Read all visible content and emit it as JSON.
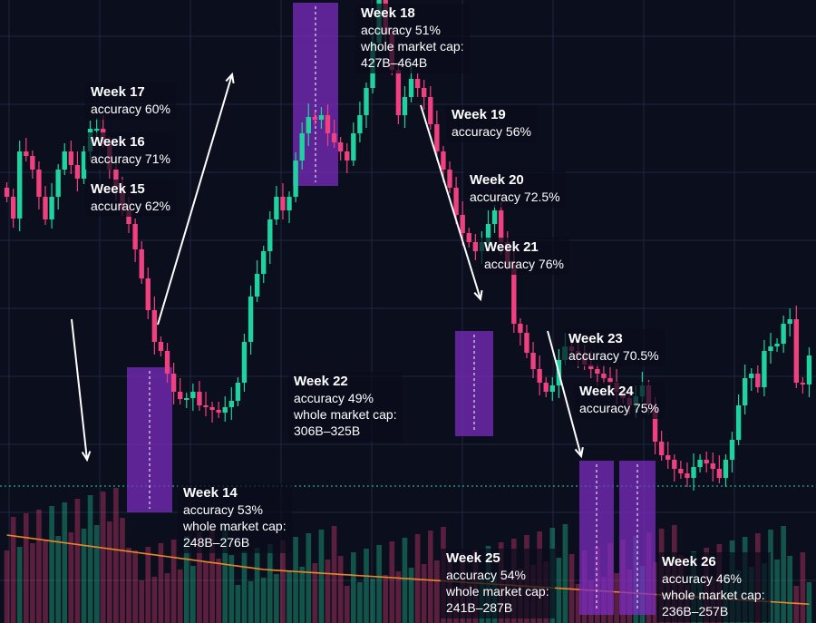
{
  "colors": {
    "background": "#0b0e1d",
    "grid": "#1f2740",
    "up": "#1fd3a0",
    "down": "#f0407f",
    "highlight": "#7b2cbf",
    "highlight_inner": "#4a5fe0",
    "volume_avg": "#e8862b",
    "price_line": "#2ad4a6",
    "arrow": "#ffffff"
  },
  "chart_data": {
    "type": "candlestick",
    "title": "",
    "xlabel": "",
    "ylabel": "",
    "grid": true,
    "price_closes": [
      470,
      446,
      520,
      515,
      500,
      470,
      445,
      470,
      500,
      520,
      505,
      490,
      520,
      545,
      545,
      530,
      500,
      480,
      455,
      440,
      412,
      380,
      345,
      310,
      300,
      275,
      255,
      247,
      248,
      255,
      240,
      238,
      235,
      232,
      238,
      245,
      265,
      310,
      360,
      385,
      410,
      445,
      470,
      455,
      470,
      510,
      540,
      558,
      555,
      560,
      540,
      530,
      520,
      510,
      540,
      560,
      590,
      640,
      700,
      650,
      610,
      560,
      580,
      600,
      590,
      580,
      550,
      520,
      500,
      480,
      450,
      430,
      420,
      410,
      420,
      440,
      455,
      420,
      395,
      330,
      320,
      298,
      280,
      265,
      255,
      262,
      290,
      305,
      300,
      295,
      285,
      280,
      275,
      270,
      265,
      255,
      248,
      240,
      250,
      262,
      240,
      200,
      185,
      180,
      170,
      165,
      160,
      172,
      180,
      176,
      170,
      160,
      180,
      202,
      240,
      270,
      275,
      260,
      300,
      305,
      308,
      330,
      335,
      265,
      263,
      295
    ],
    "week_notes": [
      {
        "week": "Week 14",
        "accuracy": "accuracy 53%",
        "cap": "whole market cap:",
        "range": "248B–276B"
      },
      {
        "week": "Week 15",
        "accuracy": "accuracy 62%"
      },
      {
        "week": "Week 16",
        "accuracy": "accuracy 71%"
      },
      {
        "week": "Week 17",
        "accuracy": "accuracy 60%"
      },
      {
        "week": "Week 18",
        "accuracy": "accuracy 51%",
        "cap": "whole market cap:",
        "range": "427B–464B"
      },
      {
        "week": "Week 19",
        "accuracy": "accuracy 56%"
      },
      {
        "week": "Week 20",
        "accuracy": "accuracy 72.5%"
      },
      {
        "week": "Week 21",
        "accuracy": "accuracy 76%"
      },
      {
        "week": "Week 22",
        "accuracy": "accuracy 49%",
        "cap": "whole market cap:",
        "range": "306B–325B"
      },
      {
        "week": "Week 23",
        "accuracy": "accuracy 70.5%"
      },
      {
        "week": "Week 24",
        "accuracy": "accuracy 75%"
      },
      {
        "week": "Week 25",
        "accuracy": "accuracy 54%",
        "cap": "whole market cap:",
        "range": "241B–287B"
      },
      {
        "week": "Week 26",
        "accuracy": "accuracy 46%",
        "cap": "whole market cap:",
        "range": "236B–257B"
      }
    ]
  }
}
